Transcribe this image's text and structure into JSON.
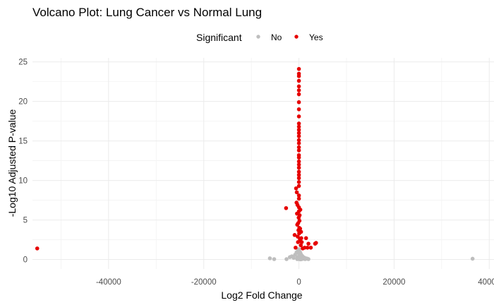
{
  "chart_data": {
    "type": "scatter",
    "title": "Volcano Plot: Lung Cancer vs Normal Lung",
    "xlabel": "Log2 Fold Change",
    "ylabel": "-Log10 Adjusted P-value",
    "xlim": [
      -56000,
      41000
    ],
    "ylim": [
      -1.2,
      25.5
    ],
    "xticks": [
      -40000,
      -20000,
      0,
      20000,
      40000
    ],
    "xtick_labels": [
      "-40000",
      "-20000",
      "0",
      "20000",
      "40000"
    ],
    "yticks": [
      0,
      5,
      10,
      15,
      20,
      25
    ],
    "ytick_labels": [
      "0",
      "5",
      "10",
      "15",
      "20",
      "25"
    ],
    "grid": true,
    "legend": {
      "title": "Significant",
      "position": "top",
      "entries": [
        {
          "label": "No",
          "color": "#bebebe"
        },
        {
          "label": "Yes",
          "color": "#e60000"
        }
      ]
    },
    "series": [
      {
        "name": "No",
        "color": "#bebebe",
        "points": [
          [
            -6100,
            0.15
          ],
          [
            -5200,
            0.05
          ],
          [
            -2600,
            0.05
          ],
          [
            -1900,
            0.3
          ],
          [
            -1500,
            0.4
          ],
          [
            -1100,
            0.2
          ],
          [
            -800,
            0.6
          ],
          [
            -500,
            0.9
          ],
          [
            -300,
            0.3
          ],
          [
            -200,
            1.1
          ],
          [
            -100,
            0.1
          ],
          [
            0,
            0.2
          ],
          [
            100,
            0.5
          ],
          [
            150,
            1.0
          ],
          [
            200,
            0.1
          ],
          [
            300,
            0.35
          ],
          [
            400,
            0.7
          ],
          [
            500,
            0.2
          ],
          [
            600,
            0.05
          ],
          [
            700,
            0.45
          ],
          [
            800,
            0.15
          ],
          [
            900,
            0.3
          ],
          [
            1000,
            0.1
          ],
          [
            1100,
            0.25
          ],
          [
            1300,
            0.05
          ],
          [
            1500,
            0.15
          ],
          [
            1800,
            0.1
          ],
          [
            2000,
            0.05
          ],
          [
            0,
            1.3
          ],
          [
            -50,
            0.8
          ],
          [
            50,
            0.05
          ],
          [
            250,
            0.9
          ],
          [
            -350,
            0.05
          ],
          [
            350,
            0.02
          ],
          [
            36500,
            0.1
          ]
        ]
      },
      {
        "name": "Yes",
        "color": "#e60000",
        "points": [
          [
            -55000,
            1.4
          ],
          [
            -2700,
            6.5
          ],
          [
            -900,
            3.1
          ],
          [
            -700,
            1.5
          ],
          [
            -600,
            9.0
          ],
          [
            -500,
            7.2
          ],
          [
            -450,
            8.5
          ],
          [
            -400,
            5.8
          ],
          [
            -350,
            4.4
          ],
          [
            -300,
            6.9
          ],
          [
            -250,
            2.9
          ],
          [
            -200,
            2.2
          ],
          [
            -150,
            4.6
          ],
          [
            -100,
            3.7
          ],
          [
            -50,
            5.3
          ],
          [
            0,
            6.1
          ],
          [
            0,
            6.6
          ],
          [
            0,
            7.7
          ],
          [
            0,
            8.1
          ],
          [
            0,
            9.3
          ],
          [
            0,
            9.8
          ],
          [
            0,
            10.3
          ],
          [
            0,
            10.7
          ],
          [
            0,
            11.1
          ],
          [
            0,
            11.6
          ],
          [
            0,
            12.0
          ],
          [
            0,
            12.4
          ],
          [
            0,
            12.9
          ],
          [
            0,
            13.2
          ],
          [
            0,
            13.8
          ],
          [
            0,
            14.2
          ],
          [
            0,
            14.7
          ],
          [
            0,
            15.1
          ],
          [
            0,
            15.6
          ],
          [
            0,
            16.0
          ],
          [
            0,
            16.4
          ],
          [
            0,
            16.8
          ],
          [
            0,
            17.2
          ],
          [
            0,
            18.1
          ],
          [
            0,
            19.0
          ],
          [
            0,
            19.9
          ],
          [
            0,
            20.9
          ],
          [
            0,
            21.4
          ],
          [
            0,
            21.9
          ],
          [
            0,
            22.6
          ],
          [
            0,
            23.2
          ],
          [
            0,
            23.5
          ],
          [
            0,
            24.1
          ],
          [
            50,
            3.3
          ],
          [
            80,
            4.0
          ],
          [
            120,
            4.9
          ],
          [
            150,
            5.6
          ],
          [
            200,
            2.6
          ],
          [
            250,
            3.9
          ],
          [
            300,
            6.3
          ],
          [
            350,
            2.3
          ],
          [
            400,
            1.8
          ],
          [
            450,
            3.5
          ],
          [
            500,
            2.7
          ],
          [
            600,
            2.2
          ],
          [
            800,
            1.4
          ],
          [
            1200,
            1.5
          ],
          [
            1500,
            2.7
          ],
          [
            1800,
            1.5
          ],
          [
            2000,
            2.0
          ],
          [
            2500,
            1.5
          ],
          [
            3400,
            2.0
          ],
          [
            3600,
            2.1
          ]
        ]
      }
    ]
  }
}
